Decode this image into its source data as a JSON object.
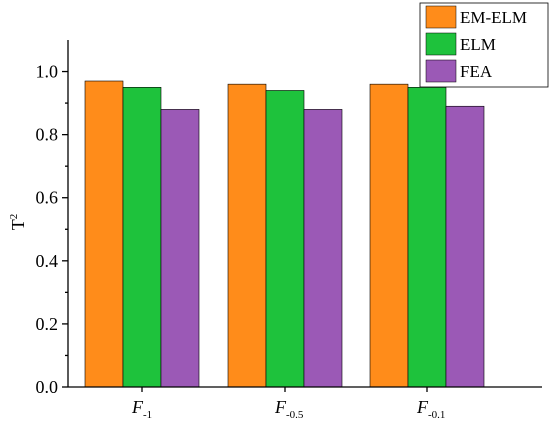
{
  "chart_data": {
    "type": "bar",
    "categories": [
      {
        "main": "F",
        "sub": "-1"
      },
      {
        "main": "F",
        "sub": "-0.5"
      },
      {
        "main": "F",
        "sub": "-0.1"
      }
    ],
    "series": [
      {
        "name": "EM-ELM",
        "color": "#ff8c1a",
        "values": [
          0.97,
          0.96,
          0.96
        ]
      },
      {
        "name": "ELM",
        "color": "#1ec23c",
        "values": [
          0.95,
          0.94,
          0.95
        ]
      },
      {
        "name": "FEA",
        "color": "#9b59b6",
        "values": [
          0.88,
          0.88,
          0.89
        ]
      }
    ],
    "ylabel": {
      "main": "T",
      "sup": "2"
    },
    "xlabel": "",
    "ylim": [
      0,
      1.1
    ],
    "yticks": [
      "0.0",
      "0.2",
      "0.4",
      "0.6",
      "0.8",
      "1.0"
    ],
    "legend_position": "top-right",
    "grid": false
  }
}
